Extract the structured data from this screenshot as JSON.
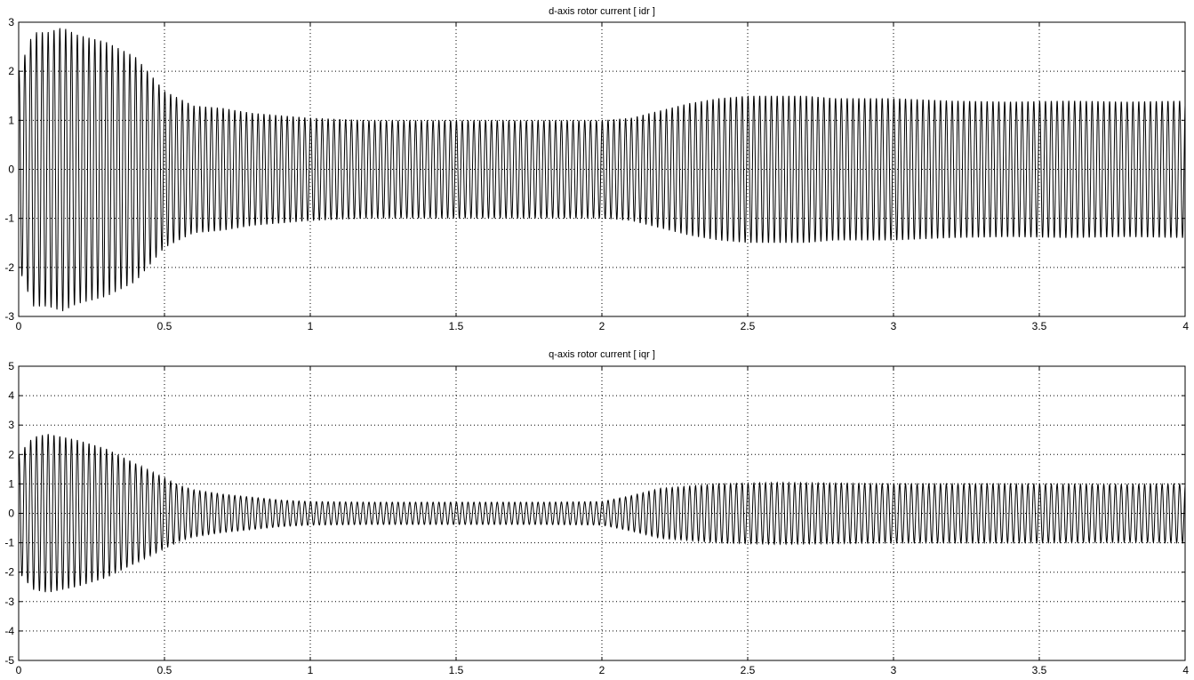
{
  "figure": {
    "background": "#ffffff",
    "line_color": "#000000",
    "grid_color": "#000000"
  },
  "chart_data": [
    {
      "type": "line",
      "title": "d-axis rotor current [ idr ]",
      "xlabel": "",
      "ylabel": "",
      "xlim": [
        0,
        4
      ],
      "ylim": [
        -3,
        3
      ],
      "x_ticks": [
        0,
        0.5,
        1,
        1.5,
        2,
        2.5,
        3,
        3.5,
        4
      ],
      "x_tick_labels": [
        "0",
        "0.5",
        "1",
        "1.5",
        "2",
        "2.5",
        "3",
        "3.5",
        "4"
      ],
      "y_ticks": [
        -3,
        -2,
        -1,
        0,
        1,
        2,
        3
      ],
      "y_tick_labels": [
        "-3",
        "-2",
        "-1",
        "0",
        "1",
        "2",
        "3"
      ],
      "grid": true,
      "oscillation_frequency_hz": 50,
      "series": [
        {
          "envelope_x": [
            0,
            0.05,
            0.1,
            0.15,
            0.2,
            0.3,
            0.4,
            0.5,
            0.6,
            0.7,
            0.8,
            1.0,
            1.2,
            1.5,
            1.8,
            2.0,
            2.1,
            2.2,
            2.3,
            2.4,
            2.5,
            2.6,
            2.7,
            2.8,
            2.9,
            3.0,
            3.2,
            3.4,
            3.6,
            3.8,
            4.0
          ],
          "envelope_y": [
            2.0,
            2.8,
            2.8,
            2.9,
            2.75,
            2.6,
            2.3,
            1.6,
            1.3,
            1.25,
            1.15,
            1.05,
            1.0,
            1.0,
            1.0,
            1.0,
            1.05,
            1.2,
            1.35,
            1.45,
            1.5,
            1.5,
            1.5,
            1.45,
            1.45,
            1.45,
            1.4,
            1.38,
            1.4,
            1.38,
            1.4
          ]
        }
      ]
    },
    {
      "type": "line",
      "title": "q-axis rotor current [ iqr ]",
      "xlabel": "",
      "ylabel": "",
      "xlim": [
        0,
        4
      ],
      "ylim": [
        -5,
        5
      ],
      "x_ticks": [
        0,
        0.5,
        1,
        1.5,
        2,
        2.5,
        3,
        3.5,
        4
      ],
      "x_tick_labels": [
        "0",
        "0.5",
        "1",
        "1.5",
        "2",
        "2.5",
        "3",
        "3.5",
        "4"
      ],
      "y_ticks": [
        -5,
        -4,
        -3,
        -2,
        -1,
        0,
        1,
        2,
        3,
        4,
        5
      ],
      "y_tick_labels": [
        "-5",
        "-4",
        "-3",
        "-2",
        "-1",
        "0",
        "1",
        "2",
        "3",
        "4",
        "5"
      ],
      "grid": true,
      "oscillation_frequency_hz": 50,
      "series": [
        {
          "envelope_x": [
            0,
            0.05,
            0.1,
            0.2,
            0.3,
            0.4,
            0.5,
            0.55,
            0.6,
            0.7,
            0.8,
            0.9,
            1.0,
            1.2,
            1.5,
            1.8,
            2.0,
            2.1,
            2.2,
            2.4,
            2.6,
            3.0,
            3.4,
            3.8,
            4.0
          ],
          "envelope_y": [
            2.0,
            2.6,
            2.7,
            2.5,
            2.2,
            1.7,
            1.2,
            0.95,
            0.8,
            0.65,
            0.55,
            0.45,
            0.4,
            0.38,
            0.38,
            0.38,
            0.4,
            0.6,
            0.85,
            1.0,
            1.05,
            1.0,
            1.0,
            0.98,
            1.0
          ]
        }
      ]
    }
  ]
}
